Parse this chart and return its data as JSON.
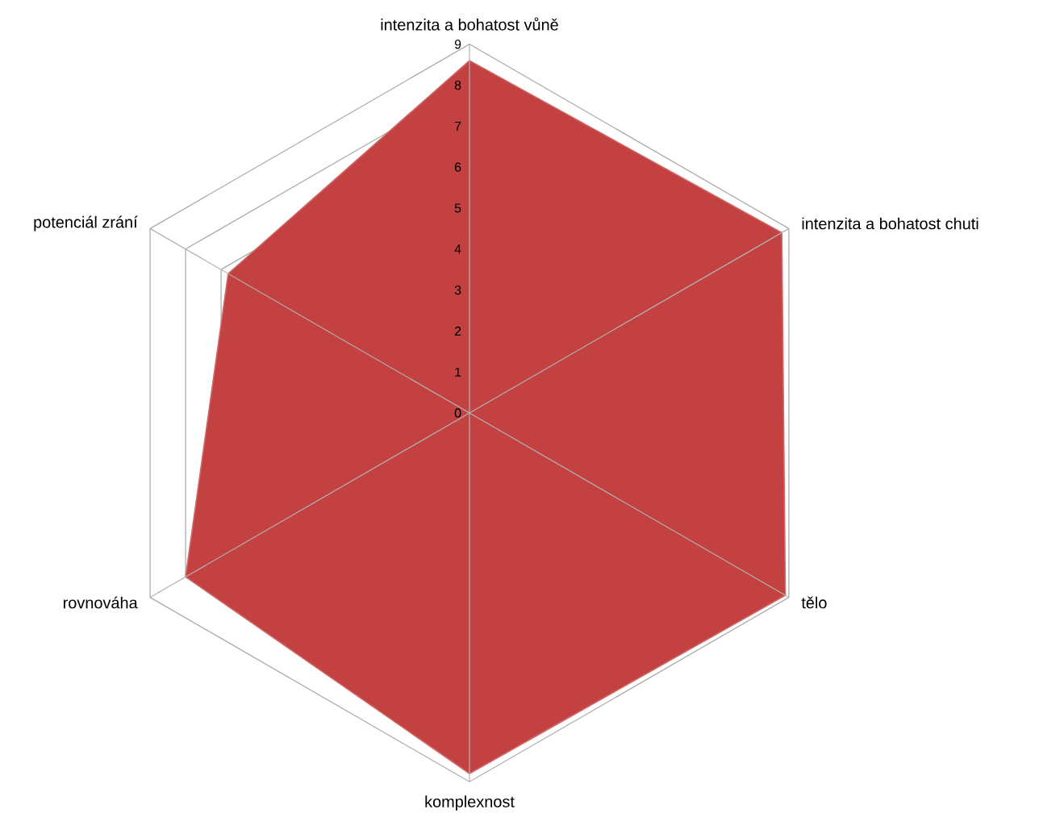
{
  "chart_data": {
    "type": "radar",
    "categories": [
      "intenzita a bohatost vůně",
      "intenzita a bohatost chuti",
      "tělo",
      "komplexnost",
      "rovnováha",
      "potenciál zrání"
    ],
    "series": [
      {
        "color": "#c44141",
        "values": [
          8.6,
          8.8,
          8.9,
          8.8,
          8.0,
          6.8
        ]
      }
    ],
    "ylim": [
      0,
      9
    ],
    "yticks": [
      0,
      1,
      2,
      3,
      4,
      5,
      6,
      7,
      8,
      9
    ],
    "grid": true
  }
}
